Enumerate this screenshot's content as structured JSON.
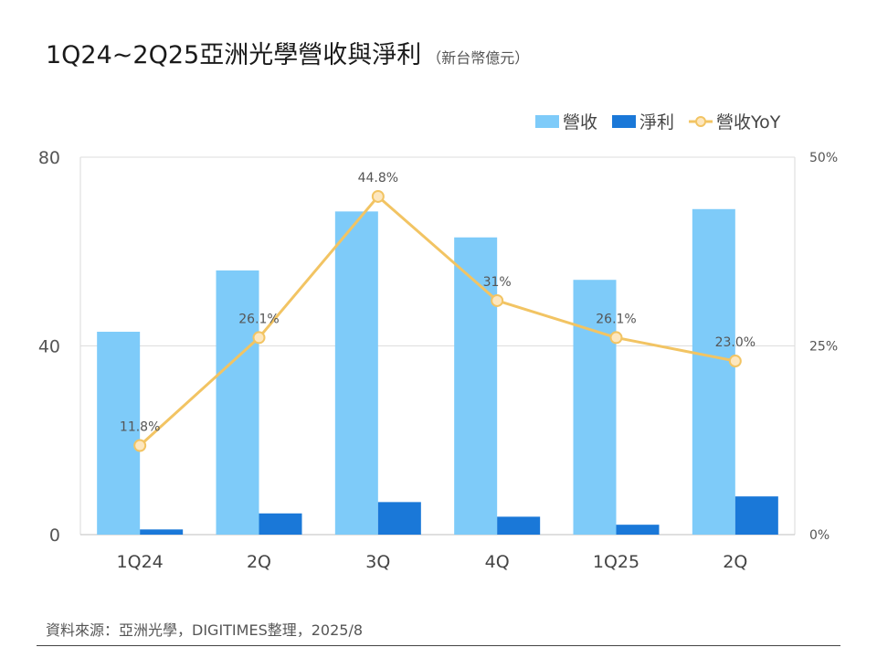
{
  "title": "1Q24~2Q25亞洲光學營收與淨利",
  "subtitle": "（新台幣億元）",
  "source": "資料來源：亞洲光學，DIGITIMES整理，2025/8",
  "chart_data": {
    "type": "bar",
    "categories": [
      "1Q24",
      "2Q",
      "3Q",
      "4Q",
      "1Q25",
      "2Q"
    ],
    "series": [
      {
        "name": "營收",
        "type": "bar",
        "axis": "left",
        "color": "#7ecbf9",
        "values": [
          43,
          56,
          68.5,
          63,
          54,
          69
        ]
      },
      {
        "name": "淨利",
        "type": "bar",
        "axis": "left",
        "color": "#1a78d8",
        "values": [
          1.1,
          4.5,
          6.9,
          3.8,
          2.1,
          8.1
        ]
      },
      {
        "name": "營收YoY",
        "type": "line",
        "axis": "right",
        "color": "#f2c463",
        "marker_fill": "#fde7bf",
        "values": [
          11.8,
          26.1,
          44.8,
          31,
          26.1,
          23.0
        ],
        "labels": [
          "11.8%",
          "26.1%",
          "44.8%",
          "31%",
          "26.1%",
          "23.0%"
        ]
      }
    ],
    "yaxis_left": {
      "range": [
        0,
        80
      ],
      "ticks": [
        "0",
        "40",
        "80"
      ],
      "tick_values": [
        0,
        40,
        80
      ]
    },
    "yaxis_right": {
      "range": [
        0,
        50
      ],
      "ticks": [
        "0%",
        "25%",
        "50%"
      ],
      "tick_values": [
        0,
        25,
        50
      ]
    },
    "grid": true,
    "legend_position": "top-right"
  }
}
